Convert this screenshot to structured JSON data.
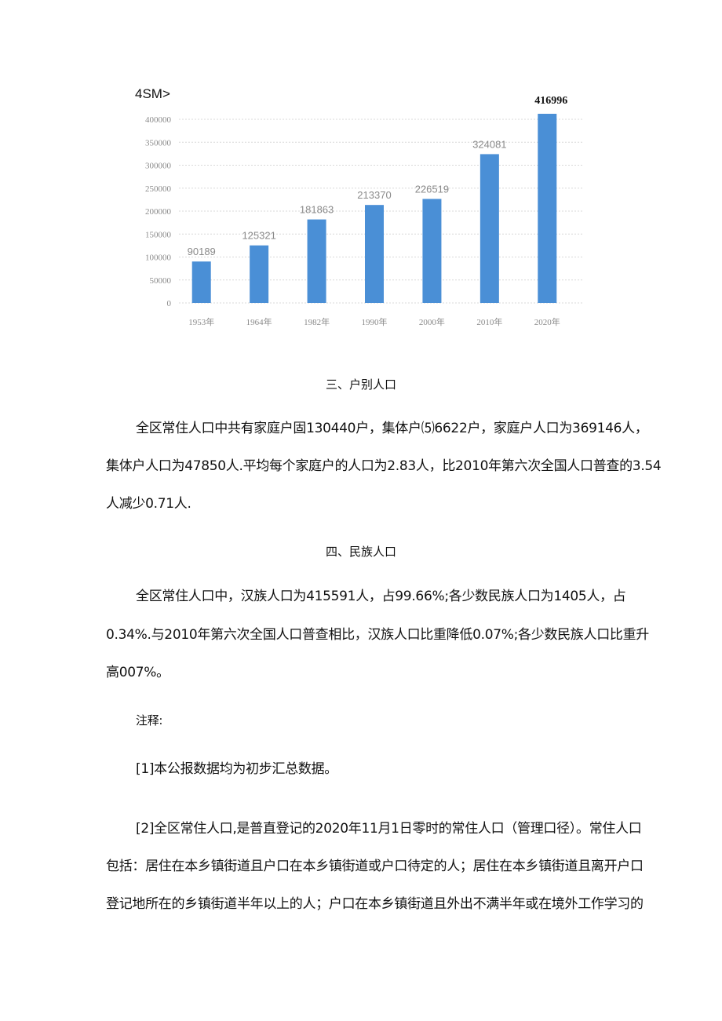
{
  "chart_data": {
    "type": "bar",
    "title": "4SM>",
    "categories": [
      "1953年",
      "1964年",
      "1982年",
      "1990年",
      "2000年",
      "2010年",
      "2020年"
    ],
    "values": [
      90189,
      125321,
      181863,
      213370,
      226519,
      324081,
      416996
    ],
    "ylim": [
      0,
      400000
    ],
    "yticks": [
      "0",
      "50000",
      "100000",
      "150000",
      "200000",
      "250000",
      "300000",
      "350000",
      "400000"
    ],
    "grid": true,
    "bar_color": "#4a8fd6",
    "label_color": "#8a8a8a"
  },
  "sections": [
    {
      "heading": "三、户别人口",
      "lines": [
        "全区常住人口中共有家庭户固130440户，集体户⑸6622户，家庭户人口为369146人，",
        "集体户人口为47850人.平均每个家庭户的人口为2.83人，比2010年第六次全国人口普查的3.54",
        "人减少0.71人."
      ]
    },
    {
      "heading": "四、民族人口",
      "lines": [
        "全区常住人口中，汉族人口为415591人，占99.66%;各少数民族人口为1405人，占",
        "0.34%.与2010年第六次全国人口普查相比，汉族人口比重降低0.07%;各少数民族人口比重升",
        "高007%。"
      ]
    }
  ],
  "notes": {
    "label": "注释:",
    "items": [
      {
        "lines": [
          "[1]本公报数据均为初步汇总数据。"
        ]
      },
      {
        "lines": [
          "[2]全区常住人口,是普直登记的2020年11月1日零时的常住人口（管理口径）。常住人口",
          "包括：居住在本乡镇街道且户口在本乡镇街道或户口待定的人；居住在本乡镇街道且离开户口",
          "登记地所在的乡镇街道半年以上的人；户口在本乡镇街道且外出不满半年或在境外工作学习的"
        ]
      }
    ]
  }
}
